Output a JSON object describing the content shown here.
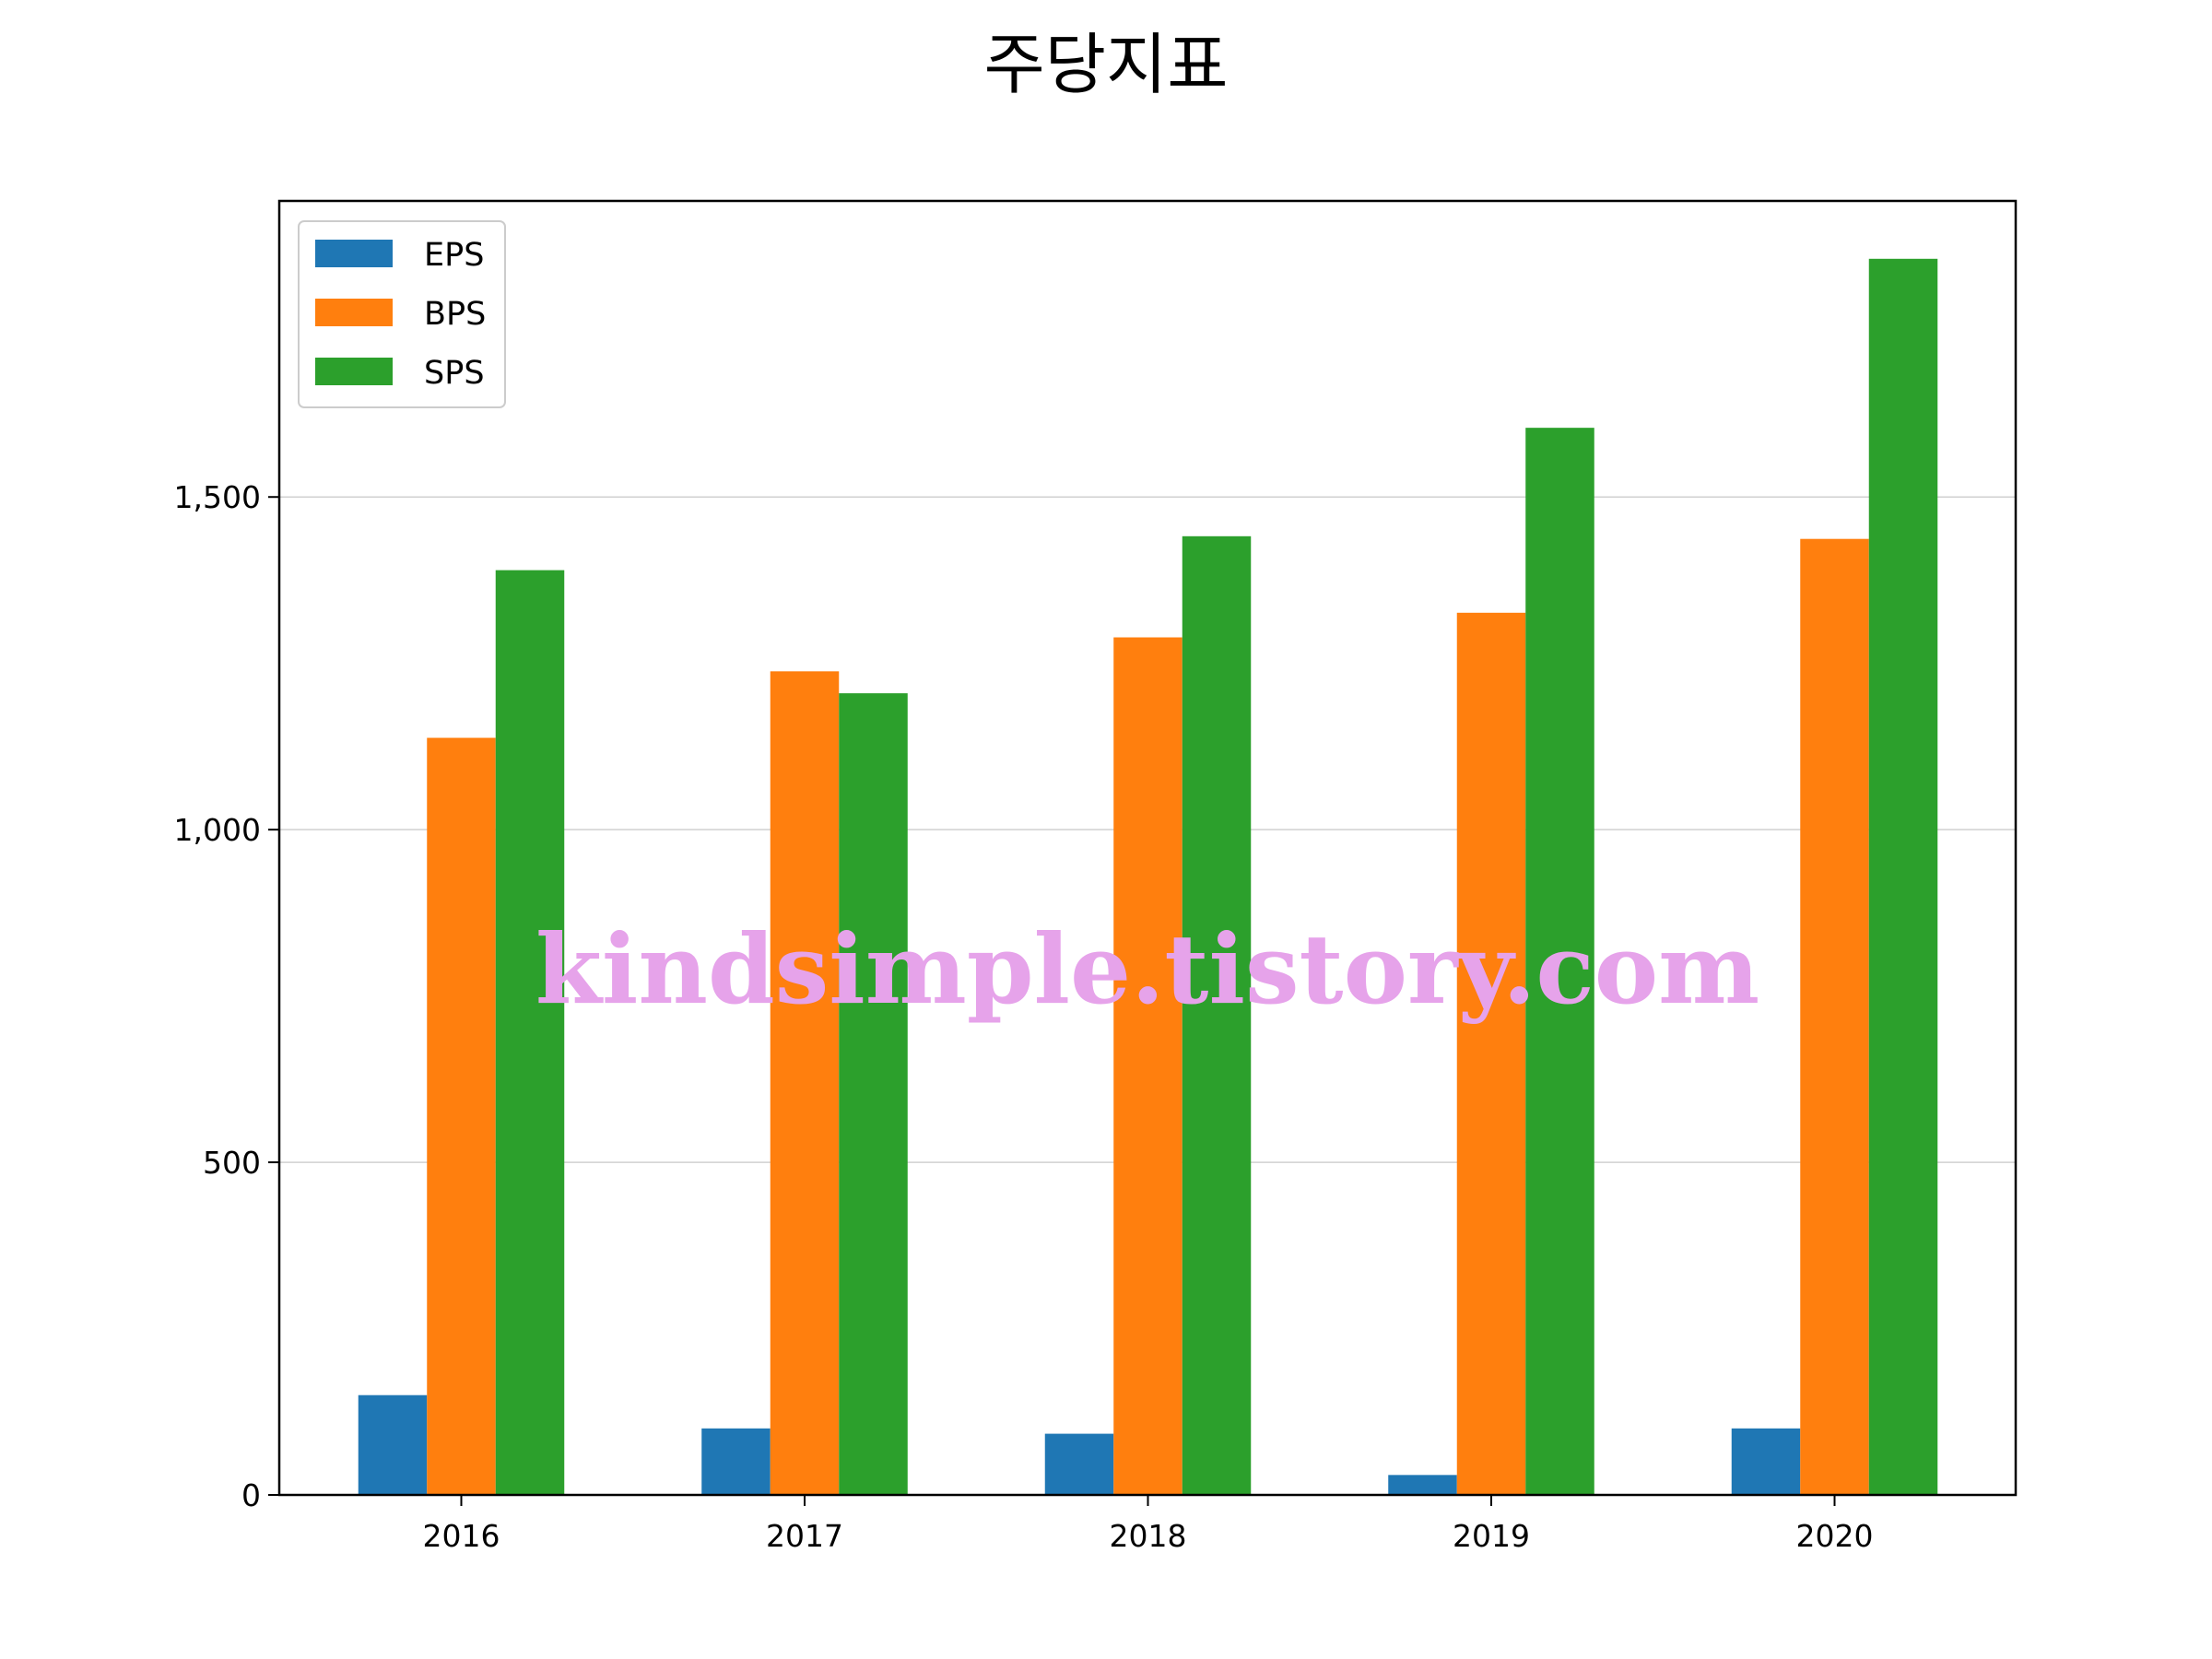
{
  "chart_data": {
    "type": "bar",
    "title": "주당지표",
    "xlabel": "",
    "ylabel": "",
    "categories": [
      "2016",
      "2017",
      "2018",
      "2019",
      "2020"
    ],
    "series": [
      {
        "name": "EPS",
        "color": "#1f77b4",
        "values": [
          150,
          100,
          92,
          30,
          100
        ]
      },
      {
        "name": "BPS",
        "color": "#ff7f0e",
        "values": [
          1138,
          1238,
          1289,
          1326,
          1437
        ]
      },
      {
        "name": "SPS",
        "color": "#2ca02c",
        "values": [
          1390,
          1205,
          1441,
          1604,
          1858
        ]
      }
    ],
    "ylim": [
      0,
      1945
    ],
    "yticks": [
      0,
      500,
      1000,
      1500
    ],
    "ytick_labels": [
      "0",
      "500",
      "1,000",
      "1,500"
    ],
    "grid": "horizontal",
    "legend_position": "top-left"
  },
  "watermark": "kindsimple.tistory.com"
}
